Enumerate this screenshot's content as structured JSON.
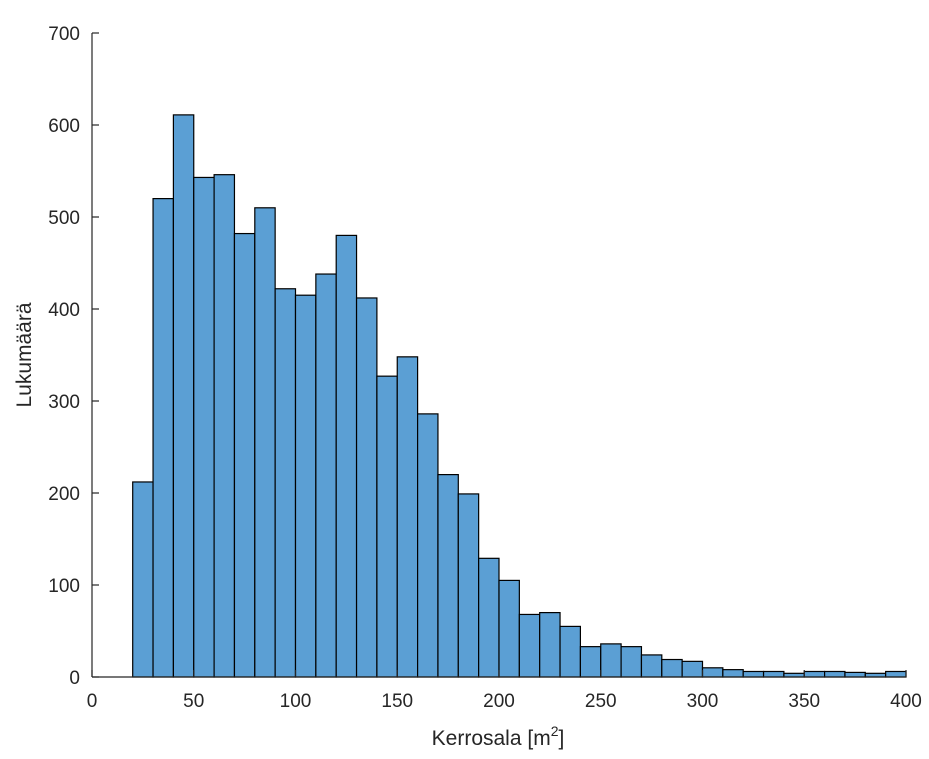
{
  "chart_data": {
    "type": "bar",
    "subtype": "histogram",
    "title": "",
    "xlabel": "Kerrosala [m",
    "xlabel_superscript": "2",
    "xlabel_suffix": "]",
    "ylabel": "Lukumäärä",
    "xlim": [
      0,
      400
    ],
    "ylim": [
      0,
      700
    ],
    "bin_width": 10,
    "bin_start": 20,
    "values": [
      212,
      520,
      611,
      543,
      546,
      482,
      510,
      422,
      415,
      438,
      480,
      412,
      327,
      348,
      286,
      220,
      199,
      129,
      105,
      68,
      70,
      55,
      33,
      36,
      33,
      24,
      19,
      17,
      10,
      8,
      6,
      6,
      4,
      6,
      6,
      5,
      4,
      6
    ],
    "xticks": [
      "0",
      "50",
      "100",
      "150",
      "200",
      "250",
      "300",
      "350",
      "400"
    ],
    "xtick_values": [
      0,
      50,
      100,
      150,
      200,
      250,
      300,
      350,
      400
    ],
    "yticks": [
      "0",
      "100",
      "200",
      "300",
      "400",
      "500",
      "600",
      "700"
    ],
    "ytick_values": [
      0,
      100,
      200,
      300,
      400,
      500,
      600,
      700
    ],
    "bar_color": "#5b9fd4",
    "edge_color": "#000000",
    "axis_color": "#262626",
    "grid": false,
    "legend": null
  }
}
